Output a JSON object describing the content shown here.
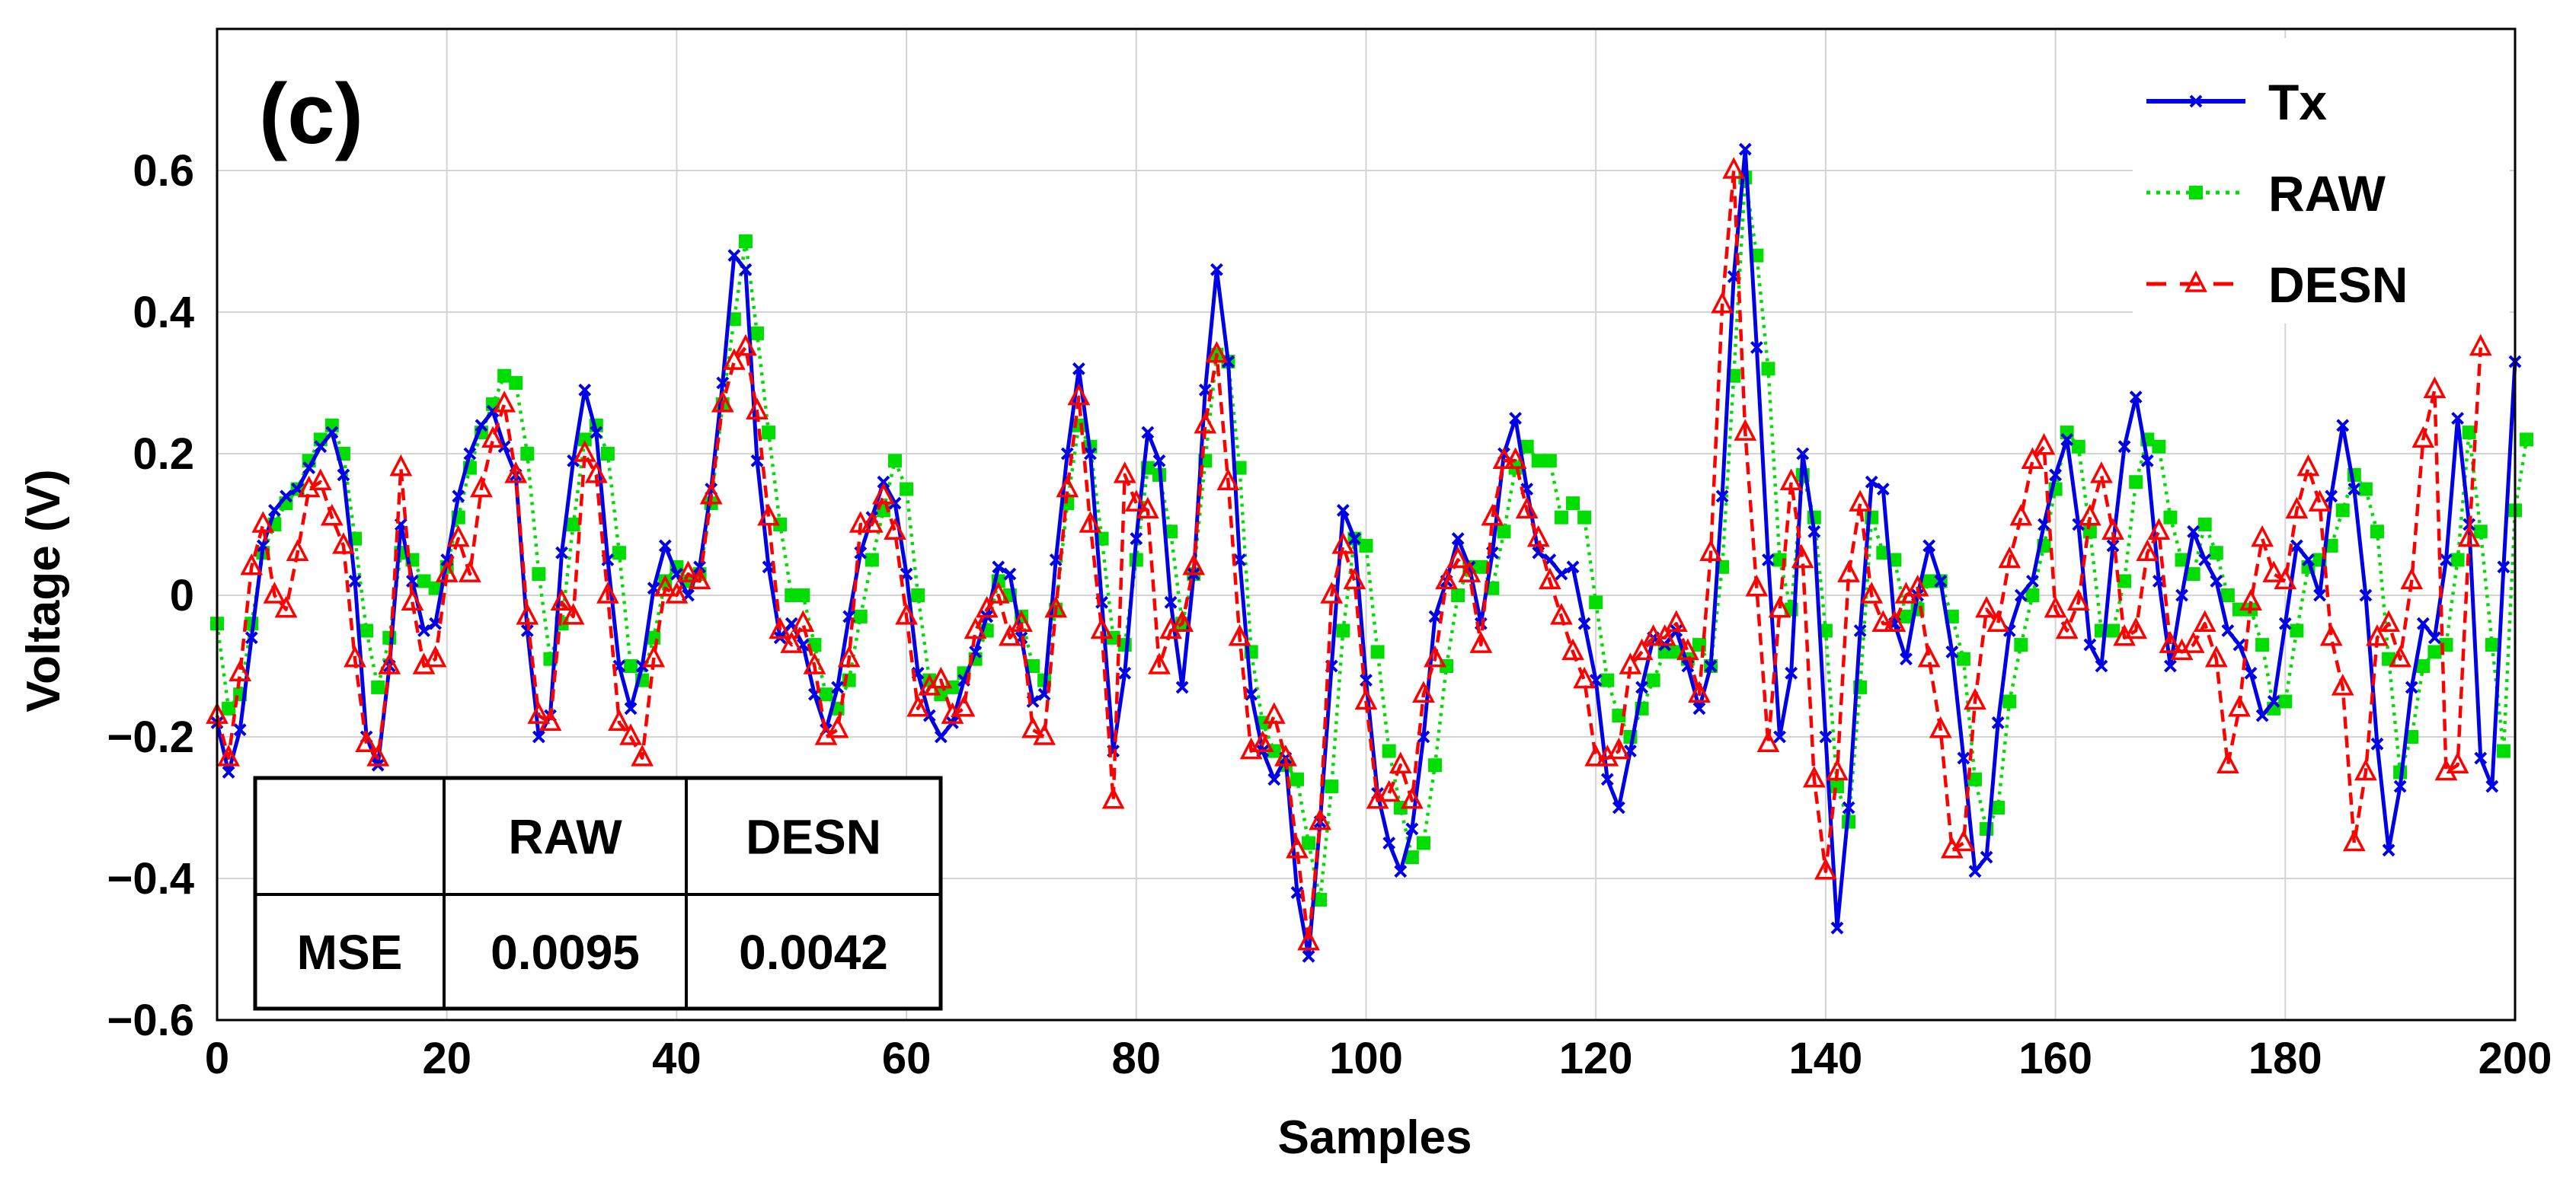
{
  "chart_data": {
    "type": "line",
    "panel_label": "(c)",
    "title": "",
    "xlabel": "Samples",
    "ylabel": "Voltage (V)",
    "xlim": [
      0,
      200
    ],
    "ylim": [
      -0.6,
      0.8
    ],
    "xticks": [
      0,
      20,
      40,
      60,
      80,
      100,
      120,
      140,
      160,
      180,
      200
    ],
    "yticks": [
      -0.6,
      -0.4,
      -0.2,
      0,
      0.2,
      0.4,
      0.6
    ],
    "ytick_labels": [
      "−0.6",
      "−0.4",
      "−0.2",
      "0",
      "0.2",
      "0.4",
      "0.6"
    ],
    "grid": true,
    "legend_position": "top-right",
    "series": [
      {
        "name": "Tx",
        "color": "#0000e6",
        "line_style": "solid",
        "marker": "x",
        "y": [
          -0.18,
          -0.25,
          -0.19,
          -0.06,
          0.07,
          0.12,
          0.14,
          0.15,
          0.18,
          0.21,
          0.23,
          0.17,
          0.02,
          -0.2,
          -0.24,
          -0.1,
          0.1,
          0.02,
          -0.05,
          -0.04,
          0.05,
          0.14,
          0.2,
          0.24,
          0.26,
          0.21,
          0.17,
          -0.05,
          -0.2,
          -0.17,
          0.06,
          0.19,
          0.29,
          0.23,
          0.05,
          -0.1,
          -0.16,
          -0.1,
          0.01,
          0.07,
          0.03,
          0.0,
          0.04,
          0.15,
          0.3,
          0.48,
          0.46,
          0.19,
          0.04,
          -0.06,
          -0.04,
          -0.07,
          -0.14,
          -0.19,
          -0.13,
          -0.03,
          0.06,
          0.11,
          0.16,
          0.13,
          0.03,
          -0.11,
          -0.17,
          -0.2,
          -0.18,
          -0.12,
          -0.08,
          -0.03,
          0.04,
          0.03,
          -0.06,
          -0.15,
          -0.14,
          0.05,
          0.2,
          0.32,
          0.2,
          -0.01,
          -0.22,
          -0.11,
          0.08,
          0.23,
          0.19,
          -0.01,
          -0.13,
          0.03,
          0.29,
          0.46,
          0.33,
          0.05,
          -0.14,
          -0.22,
          -0.26,
          -0.23,
          -0.42,
          -0.51,
          -0.32,
          -0.1,
          0.12,
          0.08,
          -0.12,
          -0.28,
          -0.35,
          -0.39,
          -0.33,
          -0.2,
          -0.03,
          0.02,
          0.08,
          0.04,
          -0.04,
          0.06,
          0.2,
          0.25,
          0.15,
          0.06,
          0.05,
          0.03,
          0.04,
          -0.04,
          -0.12,
          -0.26,
          -0.3,
          -0.22,
          -0.13,
          -0.06,
          -0.07,
          -0.05,
          -0.1,
          -0.16,
          -0.1,
          0.14,
          0.45,
          0.63,
          0.35,
          0.05,
          -0.2,
          -0.11,
          0.2,
          0.09,
          -0.2,
          -0.47,
          -0.3,
          -0.05,
          0.16,
          0.15,
          -0.04,
          -0.09,
          0.0,
          0.07,
          0.02,
          -0.08,
          -0.23,
          -0.39,
          -0.37,
          -0.18,
          -0.05,
          0.0,
          0.02,
          0.1,
          0.17,
          0.22,
          0.1,
          -0.07,
          -0.1,
          0.07,
          0.21,
          0.28,
          0.19,
          0.02,
          -0.1,
          0.0,
          0.09,
          0.05,
          0.02,
          -0.05,
          -0.07,
          -0.11,
          -0.17,
          -0.15,
          -0.04,
          0.07,
          0.05,
          0.0,
          0.14,
          0.24,
          0.15,
          0.0,
          -0.21,
          -0.36,
          -0.27,
          -0.13,
          -0.04,
          -0.06,
          0.05,
          0.25,
          0.1,
          -0.23,
          -0.27,
          0.04,
          0.33
        ]
      },
      {
        "name": "RAW",
        "color": "#00dd00",
        "line_style": "dotted",
        "marker": "square",
        "y": [
          -0.04,
          -0.16,
          -0.14,
          -0.04,
          0.06,
          0.1,
          0.13,
          0.15,
          0.19,
          0.22,
          0.24,
          0.2,
          0.08,
          -0.05,
          -0.13,
          -0.06,
          0.06,
          0.05,
          0.02,
          0.01,
          0.04,
          0.11,
          0.18,
          0.23,
          0.27,
          0.31,
          0.3,
          0.2,
          0.03,
          -0.09,
          -0.04,
          0.1,
          0.22,
          0.24,
          0.2,
          0.06,
          -0.1,
          -0.12,
          -0.06,
          0.02,
          0.04,
          0.02,
          0.03,
          0.13,
          0.27,
          0.39,
          0.5,
          0.37,
          0.23,
          0.1,
          0.0,
          0.0,
          -0.07,
          -0.14,
          -0.16,
          -0.12,
          -0.03,
          0.05,
          0.12,
          0.19,
          0.15,
          0.0,
          -0.12,
          -0.14,
          -0.13,
          -0.11,
          -0.09,
          -0.05,
          0.02,
          0.0,
          -0.03,
          -0.1,
          -0.12,
          -0.02,
          0.13,
          0.24,
          0.21,
          0.08,
          -0.06,
          -0.07,
          0.05,
          0.18,
          0.17,
          0.09,
          -0.04,
          0.03,
          0.19,
          0.34,
          0.33,
          0.18,
          -0.08,
          -0.18,
          -0.22,
          -0.24,
          -0.26,
          -0.35,
          -0.43,
          -0.27,
          -0.05,
          0.08,
          0.07,
          -0.08,
          -0.22,
          -0.3,
          -0.37,
          -0.35,
          -0.24,
          -0.1,
          0.0,
          0.04,
          0.04,
          0.01,
          0.09,
          0.18,
          0.21,
          0.19,
          0.19,
          0.11,
          0.13,
          0.11,
          -0.01,
          -0.12,
          -0.17,
          -0.2,
          -0.16,
          -0.12,
          -0.08,
          -0.08,
          -0.09,
          -0.07,
          -0.1,
          0.04,
          0.31,
          0.59,
          0.48,
          0.32,
          0.05,
          -0.02,
          0.17,
          0.11,
          -0.05,
          -0.27,
          -0.32,
          -0.13,
          0.11,
          0.06,
          0.05,
          -0.03,
          -0.02,
          0.02,
          0.02,
          -0.03,
          -0.09,
          -0.26,
          -0.33,
          -0.3,
          -0.15,
          -0.07,
          0.0,
          0.07,
          0.15,
          0.23,
          0.21,
          0.09,
          -0.05,
          -0.05,
          0.02,
          0.16,
          0.22,
          0.21,
          0.11,
          0.05,
          0.03,
          0.1,
          0.06,
          0.0,
          -0.02,
          -0.02,
          -0.07,
          -0.16,
          -0.15,
          -0.05,
          0.04,
          0.05,
          0.07,
          0.12,
          0.17,
          0.15,
          0.09,
          -0.09,
          -0.25,
          -0.2,
          -0.1,
          -0.08,
          -0.07,
          0.05,
          0.23,
          0.09,
          -0.07,
          -0.22,
          0.12,
          0.22
        ]
      },
      {
        "name": "DESN",
        "color": "#ff0000",
        "line_style": "dashed",
        "marker": "triangle",
        "y": [
          -0.17,
          -0.23,
          -0.11,
          0.04,
          0.1,
          0.0,
          -0.02,
          0.06,
          0.15,
          0.16,
          0.11,
          0.07,
          -0.09,
          -0.21,
          -0.23,
          -0.1,
          0.18,
          -0.01,
          -0.1,
          -0.09,
          0.03,
          0.08,
          0.03,
          0.15,
          0.22,
          0.27,
          0.17,
          -0.03,
          -0.17,
          -0.18,
          -0.01,
          -0.03,
          0.2,
          0.17,
          0.0,
          -0.18,
          -0.2,
          -0.23,
          -0.09,
          0.01,
          0.0,
          0.03,
          0.02,
          0.14,
          0.27,
          0.33,
          0.35,
          0.26,
          0.11,
          -0.05,
          -0.07,
          -0.04,
          -0.1,
          -0.2,
          -0.19,
          -0.09,
          0.1,
          0.1,
          0.14,
          0.09,
          -0.03,
          -0.16,
          -0.13,
          -0.12,
          -0.17,
          -0.16,
          -0.05,
          -0.02,
          0.0,
          -0.06,
          -0.04,
          -0.19,
          -0.2,
          -0.02,
          0.15,
          0.28,
          0.1,
          -0.05,
          -0.29,
          0.17,
          0.13,
          0.12,
          -0.1,
          -0.05,
          -0.04,
          0.04,
          0.24,
          0.34,
          0.16,
          -0.06,
          -0.22,
          -0.21,
          -0.17,
          -0.23,
          -0.36,
          -0.49,
          -0.32,
          0.0,
          0.07,
          0.02,
          -0.15,
          -0.29,
          -0.28,
          -0.24,
          -0.29,
          -0.14,
          -0.09,
          0.02,
          0.05,
          0.03,
          -0.07,
          0.11,
          0.19,
          0.19,
          0.12,
          0.08,
          0.02,
          -0.03,
          -0.08,
          -0.12,
          -0.23,
          -0.23,
          -0.22,
          -0.1,
          -0.08,
          -0.06,
          -0.06,
          -0.04,
          -0.08,
          -0.14,
          0.06,
          0.41,
          0.6,
          0.23,
          0.01,
          -0.21,
          -0.02,
          0.16,
          0.05,
          -0.26,
          -0.39,
          -0.25,
          0.03,
          0.13,
          0.0,
          -0.04,
          -0.04,
          0.0,
          0.01,
          -0.09,
          -0.19,
          -0.36,
          -0.35,
          -0.15,
          -0.02,
          -0.04,
          0.05,
          0.11,
          0.19,
          0.21,
          -0.02,
          -0.05,
          -0.01,
          0.11,
          0.17,
          0.09,
          -0.06,
          -0.05,
          0.06,
          0.09,
          -0.07,
          -0.08,
          -0.07,
          -0.04,
          -0.09,
          -0.24,
          -0.16,
          -0.01,
          0.08,
          0.03,
          0.02,
          0.12,
          0.18,
          0.13,
          -0.06,
          -0.13,
          -0.35,
          -0.25,
          -0.06,
          -0.04,
          -0.09,
          0.02,
          0.22,
          0.29,
          -0.25,
          -0.24,
          0.08,
          0.35
        ]
      }
    ],
    "table": {
      "header": [
        "",
        "RAW",
        "DESN"
      ],
      "rows": [
        [
          "MSE",
          "0.0095",
          "0.0042"
        ]
      ]
    }
  }
}
